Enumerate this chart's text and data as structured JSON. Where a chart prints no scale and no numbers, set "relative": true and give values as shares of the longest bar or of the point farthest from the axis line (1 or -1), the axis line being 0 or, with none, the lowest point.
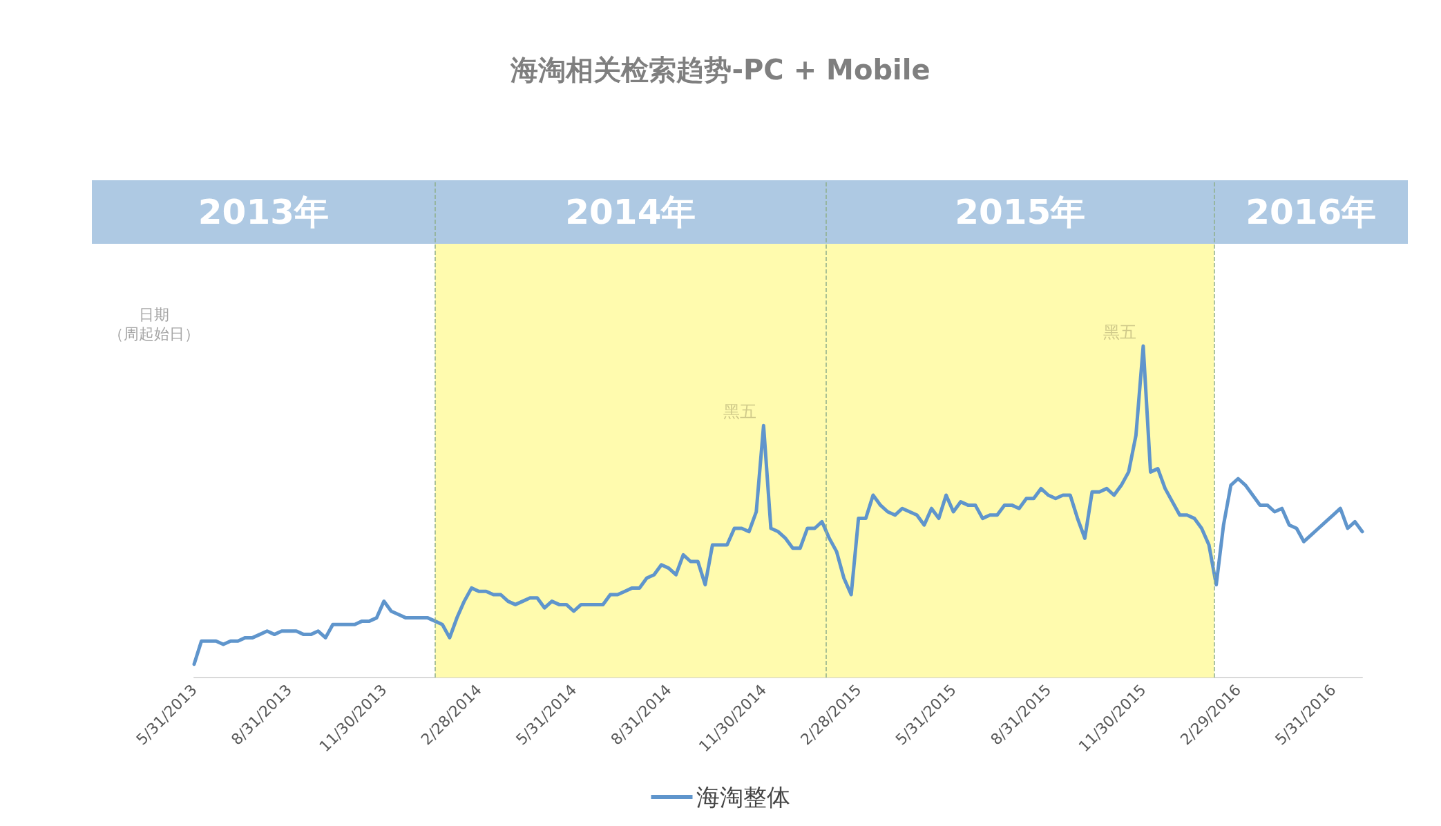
{
  "chart_data": {
    "type": "line",
    "title": "海淘相关检索趋势-PC + Mobile",
    "relative": true,
    "grid": false,
    "legend": "bottom",
    "marker": "none",
    "line_style": "solid",
    "x": [
      "2013-05-31",
      "2013-06-07",
      "2013-06-14",
      "2013-06-21",
      "2013-06-28",
      "2013-07-05",
      "2013-07-12",
      "2013-07-19",
      "2013-07-26",
      "2013-08-02",
      "2013-08-09",
      "2013-08-16",
      "2013-08-23",
      "2013-08-30",
      "2013-09-06",
      "2013-09-13",
      "2013-09-20",
      "2013-09-27",
      "2013-10-04",
      "2013-10-11",
      "2013-10-18",
      "2013-10-25",
      "2013-11-01",
      "2013-11-08",
      "2013-11-15",
      "2013-11-22",
      "2013-11-29",
      "2013-12-06",
      "2013-12-13",
      "2013-12-20",
      "2013-12-27",
      "2014-01-03",
      "2014-01-10",
      "2014-01-17",
      "2014-01-24",
      "2014-01-31",
      "2014-02-07",
      "2014-02-14",
      "2014-02-21",
      "2014-02-28",
      "2014-03-07",
      "2014-03-14",
      "2014-03-21",
      "2014-03-28",
      "2014-04-04",
      "2014-04-11",
      "2014-04-18",
      "2014-04-25",
      "2014-05-02",
      "2014-05-09",
      "2014-05-16",
      "2014-05-23",
      "2014-05-30",
      "2014-06-06",
      "2014-06-13",
      "2014-06-20",
      "2014-06-27",
      "2014-07-04",
      "2014-07-11",
      "2014-07-18",
      "2014-07-25",
      "2014-08-01",
      "2014-08-08",
      "2014-08-15",
      "2014-08-22",
      "2014-08-29",
      "2014-09-05",
      "2014-09-12",
      "2014-09-19",
      "2014-09-26",
      "2014-10-03",
      "2014-10-10",
      "2014-10-17",
      "2014-10-24",
      "2014-10-31",
      "2014-11-07",
      "2014-11-14",
      "2014-11-21",
      "2014-11-28",
      "2014-12-05",
      "2014-12-12",
      "2014-12-19",
      "2014-12-26",
      "2015-01-02",
      "2015-01-09",
      "2015-01-16",
      "2015-01-23",
      "2015-01-30",
      "2015-02-06",
      "2015-02-13",
      "2015-02-20",
      "2015-02-27",
      "2015-03-06",
      "2015-03-13",
      "2015-03-20",
      "2015-03-27",
      "2015-04-03",
      "2015-04-10",
      "2015-04-17",
      "2015-04-24",
      "2015-05-01",
      "2015-05-08",
      "2015-05-15",
      "2015-05-22",
      "2015-05-29",
      "2015-06-05",
      "2015-06-12",
      "2015-06-19",
      "2015-06-26",
      "2015-07-03",
      "2015-07-10",
      "2015-07-17",
      "2015-07-24",
      "2015-07-31",
      "2015-08-07",
      "2015-08-14",
      "2015-08-21",
      "2015-08-28",
      "2015-09-04",
      "2015-09-11",
      "2015-09-18",
      "2015-09-25",
      "2015-10-02",
      "2015-10-09",
      "2015-10-16",
      "2015-10-23",
      "2015-10-30",
      "2015-11-06",
      "2015-11-13",
      "2015-11-20",
      "2015-11-27",
      "2015-12-04",
      "2015-12-11",
      "2015-12-18",
      "2015-12-25",
      "2016-01-01",
      "2016-01-08",
      "2016-01-15",
      "2016-01-22",
      "2016-01-29",
      "2016-02-05",
      "2016-02-12",
      "2016-02-19",
      "2016-02-26",
      "2016-03-04",
      "2016-03-11",
      "2016-03-18",
      "2016-03-25",
      "2016-04-01",
      "2016-04-08",
      "2016-04-15",
      "2016-04-22",
      "2016-04-29",
      "2016-05-06",
      "2016-05-13",
      "2016-05-20",
      "2016-05-27",
      "2016-06-03",
      "2016-06-10",
      "2016-06-17",
      "2016-06-24"
    ],
    "series": [
      {
        "name": "海淘整体",
        "color": "#5f95cc",
        "values": [
          0.04,
          0.11,
          0.11,
          0.11,
          0.1,
          0.11,
          0.11,
          0.12,
          0.12,
          0.13,
          0.14,
          0.13,
          0.14,
          0.14,
          0.14,
          0.13,
          0.13,
          0.14,
          0.12,
          0.16,
          0.16,
          0.16,
          0.16,
          0.17,
          0.17,
          0.18,
          0.23,
          0.2,
          0.19,
          0.18,
          0.18,
          0.18,
          0.18,
          0.17,
          0.16,
          0.12,
          0.18,
          0.23,
          0.27,
          0.26,
          0.26,
          0.25,
          0.25,
          0.23,
          0.22,
          0.23,
          0.24,
          0.24,
          0.21,
          0.23,
          0.22,
          0.22,
          0.2,
          0.22,
          0.22,
          0.22,
          0.22,
          0.25,
          0.25,
          0.26,
          0.27,
          0.27,
          0.3,
          0.31,
          0.34,
          0.33,
          0.31,
          0.37,
          0.35,
          0.35,
          0.28,
          0.4,
          0.4,
          0.4,
          0.45,
          0.45,
          0.44,
          0.5,
          0.76,
          0.45,
          0.44,
          0.42,
          0.39,
          0.39,
          0.45,
          0.45,
          0.47,
          0.42,
          0.38,
          0.3,
          0.25,
          0.48,
          0.48,
          0.55,
          0.52,
          0.5,
          0.49,
          0.51,
          0.5,
          0.49,
          0.46,
          0.51,
          0.48,
          0.55,
          0.5,
          0.53,
          0.52,
          0.52,
          0.48,
          0.49,
          0.49,
          0.52,
          0.52,
          0.51,
          0.54,
          0.54,
          0.57,
          0.55,
          0.54,
          0.55,
          0.55,
          0.48,
          0.42,
          0.56,
          0.56,
          0.57,
          0.55,
          0.58,
          0.62,
          0.73,
          1.0,
          0.62,
          0.63,
          0.57,
          0.53,
          0.49,
          0.49,
          0.48,
          0.45,
          0.4,
          0.28,
          0.46,
          0.58,
          0.6,
          0.58,
          0.55,
          0.52,
          0.52,
          0.5,
          0.51,
          0.46,
          0.45,
          0.41,
          0.43,
          0.45,
          0.47,
          0.49,
          0.51,
          0.45,
          0.47,
          0.44
        ]
      }
    ],
    "xlim": [
      "2013-05-31",
      "2016-06-24"
    ],
    "xticks": [
      {
        "value": "2013-05-31",
        "label": "5/31/2013"
      },
      {
        "value": "2013-08-30",
        "label": "8/31/2013"
      },
      {
        "value": "2013-11-29",
        "label": "11/30/2013"
      },
      {
        "value": "2014-02-28",
        "label": "2/28/2014"
      },
      {
        "value": "2014-05-30",
        "label": "5/31/2014"
      },
      {
        "value": "2014-08-29",
        "label": "8/31/2014"
      },
      {
        "value": "2014-11-28",
        "label": "11/30/2014"
      },
      {
        "value": "2015-02-27",
        "label": "2/28/2015"
      },
      {
        "value": "2015-05-29",
        "label": "5/31/2015"
      },
      {
        "value": "2015-08-28",
        "label": "8/31/2015"
      },
      {
        "value": "2015-11-27",
        "label": "11/30/2015"
      },
      {
        "value": "2016-02-26",
        "label": "2/29/2016"
      },
      {
        "value": "2016-05-27",
        "label": "5/31/2016"
      }
    ],
    "bands": [
      {
        "axis": "x",
        "from": "2014-01-17",
        "to": "2016-02-03",
        "color": "#fff98f"
      }
    ],
    "ref_lines": [
      {
        "axis": "x",
        "value": "2014-01-17",
        "color": "#8fae8a",
        "line_style": "dashed"
      },
      {
        "axis": "x",
        "value": "2015-01-27",
        "color": "#8fae8a",
        "line_style": "dashed"
      },
      {
        "axis": "x",
        "value": "2016-02-03",
        "color": "#8fae8a",
        "line_style": "dashed"
      }
    ],
    "annotations": [
      "2013年",
      "2014年",
      "2015年",
      "2016年",
      "日期",
      "（周起始日）",
      {
        "text": "黑五",
        "x": "2014-11-28",
        "y": 0.76
      },
      {
        "text": "黑五",
        "x": "2015-11-27",
        "y": 1.0
      }
    ]
  }
}
